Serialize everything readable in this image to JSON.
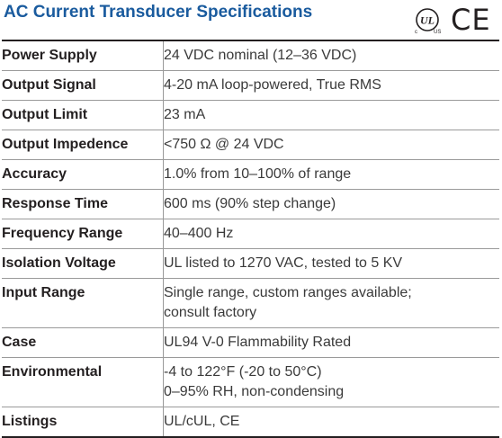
{
  "title": "AC Current Transducer Specifications",
  "marks": {
    "ul": {
      "icon": "ul-listing-mark-icon",
      "letters": "UL",
      "sub_left": "c",
      "sub_right": "US"
    },
    "ce": {
      "icon": "ce-mark-icon",
      "letters": "CE"
    }
  },
  "specs": [
    {
      "label": "Power Supply",
      "value": "24 VDC nominal (12–36 VDC)",
      "value2": ""
    },
    {
      "label": "Output Signal",
      "value": "4-20 mA loop-powered, True RMS",
      "value2": ""
    },
    {
      "label": "Output Limit",
      "value": "23 mA",
      "value2": ""
    },
    {
      "label": "Output Impedence",
      "value": "<750 Ω @ 24 VDC",
      "value2": ""
    },
    {
      "label": "Accuracy",
      "value": "1.0% from 10–100% of range",
      "value2": ""
    },
    {
      "label": "Response Time",
      "value": "600 ms (90% step change)",
      "value2": ""
    },
    {
      "label": "Frequency Range",
      "value": "40–400 Hz",
      "value2": ""
    },
    {
      "label": "Isolation Voltage",
      "value": "UL listed to 1270 VAC, tested to 5 KV",
      "value2": ""
    },
    {
      "label": "Input Range",
      "value": "Single range, custom ranges available;",
      "value2": "consult factory"
    },
    {
      "label": "Case",
      "value": "UL94 V-0 Flammability Rated",
      "value2": ""
    },
    {
      "label": "Environmental",
      "value": "-4 to 122°F (-20 to 50°C)",
      "value2": "0–95% RH, non-condensing"
    },
    {
      "label": "Listings",
      "value": "UL/cUL, CE",
      "value2": ""
    }
  ]
}
